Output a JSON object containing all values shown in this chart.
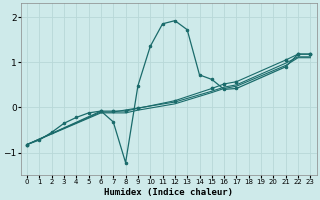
{
  "xlabel": "Humidex (Indice chaleur)",
  "bg_color": "#ceeaea",
  "grid_color": "#b8d8d8",
  "line_color": "#1a6b6b",
  "xlim": [
    -0.5,
    23.5
  ],
  "ylim": [
    -1.5,
    2.3
  ],
  "xticks": [
    0,
    1,
    2,
    3,
    4,
    5,
    6,
    7,
    8,
    9,
    10,
    11,
    12,
    13,
    14,
    15,
    16,
    17,
    18,
    19,
    20,
    21,
    22,
    23
  ],
  "yticks": [
    -1,
    0,
    1,
    2
  ],
  "curve1_x": [
    0,
    1,
    2,
    3,
    4,
    5,
    6,
    7,
    8,
    9,
    10,
    11,
    12,
    13,
    14,
    15,
    16,
    17,
    21,
    22,
    23
  ],
  "curve1_y": [
    -0.82,
    -0.72,
    -0.55,
    -0.35,
    -0.22,
    -0.12,
    -0.08,
    -0.32,
    -1.22,
    0.48,
    1.35,
    1.85,
    1.92,
    1.72,
    0.72,
    0.62,
    0.4,
    0.42,
    0.9,
    1.18,
    1.18
  ],
  "line1_x": [
    0,
    6,
    7,
    8,
    9,
    12,
    15,
    16,
    17,
    21,
    22,
    23
  ],
  "line1_y": [
    -0.82,
    -0.08,
    -0.08,
    -0.08,
    -0.02,
    0.15,
    0.42,
    0.52,
    0.57,
    1.05,
    1.18,
    1.18
  ],
  "line2_x": [
    0,
    6,
    7,
    12,
    15,
    16,
    17,
    21,
    22,
    23
  ],
  "line2_y": [
    -0.82,
    -0.1,
    -0.1,
    0.12,
    0.36,
    0.45,
    0.5,
    0.98,
    1.12,
    1.12
  ],
  "line3_x": [
    0,
    6,
    7,
    8,
    9,
    12,
    15,
    16,
    17,
    21,
    22,
    23
  ],
  "line3_y": [
    -0.82,
    -0.12,
    -0.12,
    -0.12,
    -0.06,
    0.08,
    0.33,
    0.42,
    0.47,
    0.93,
    1.1,
    1.1
  ]
}
